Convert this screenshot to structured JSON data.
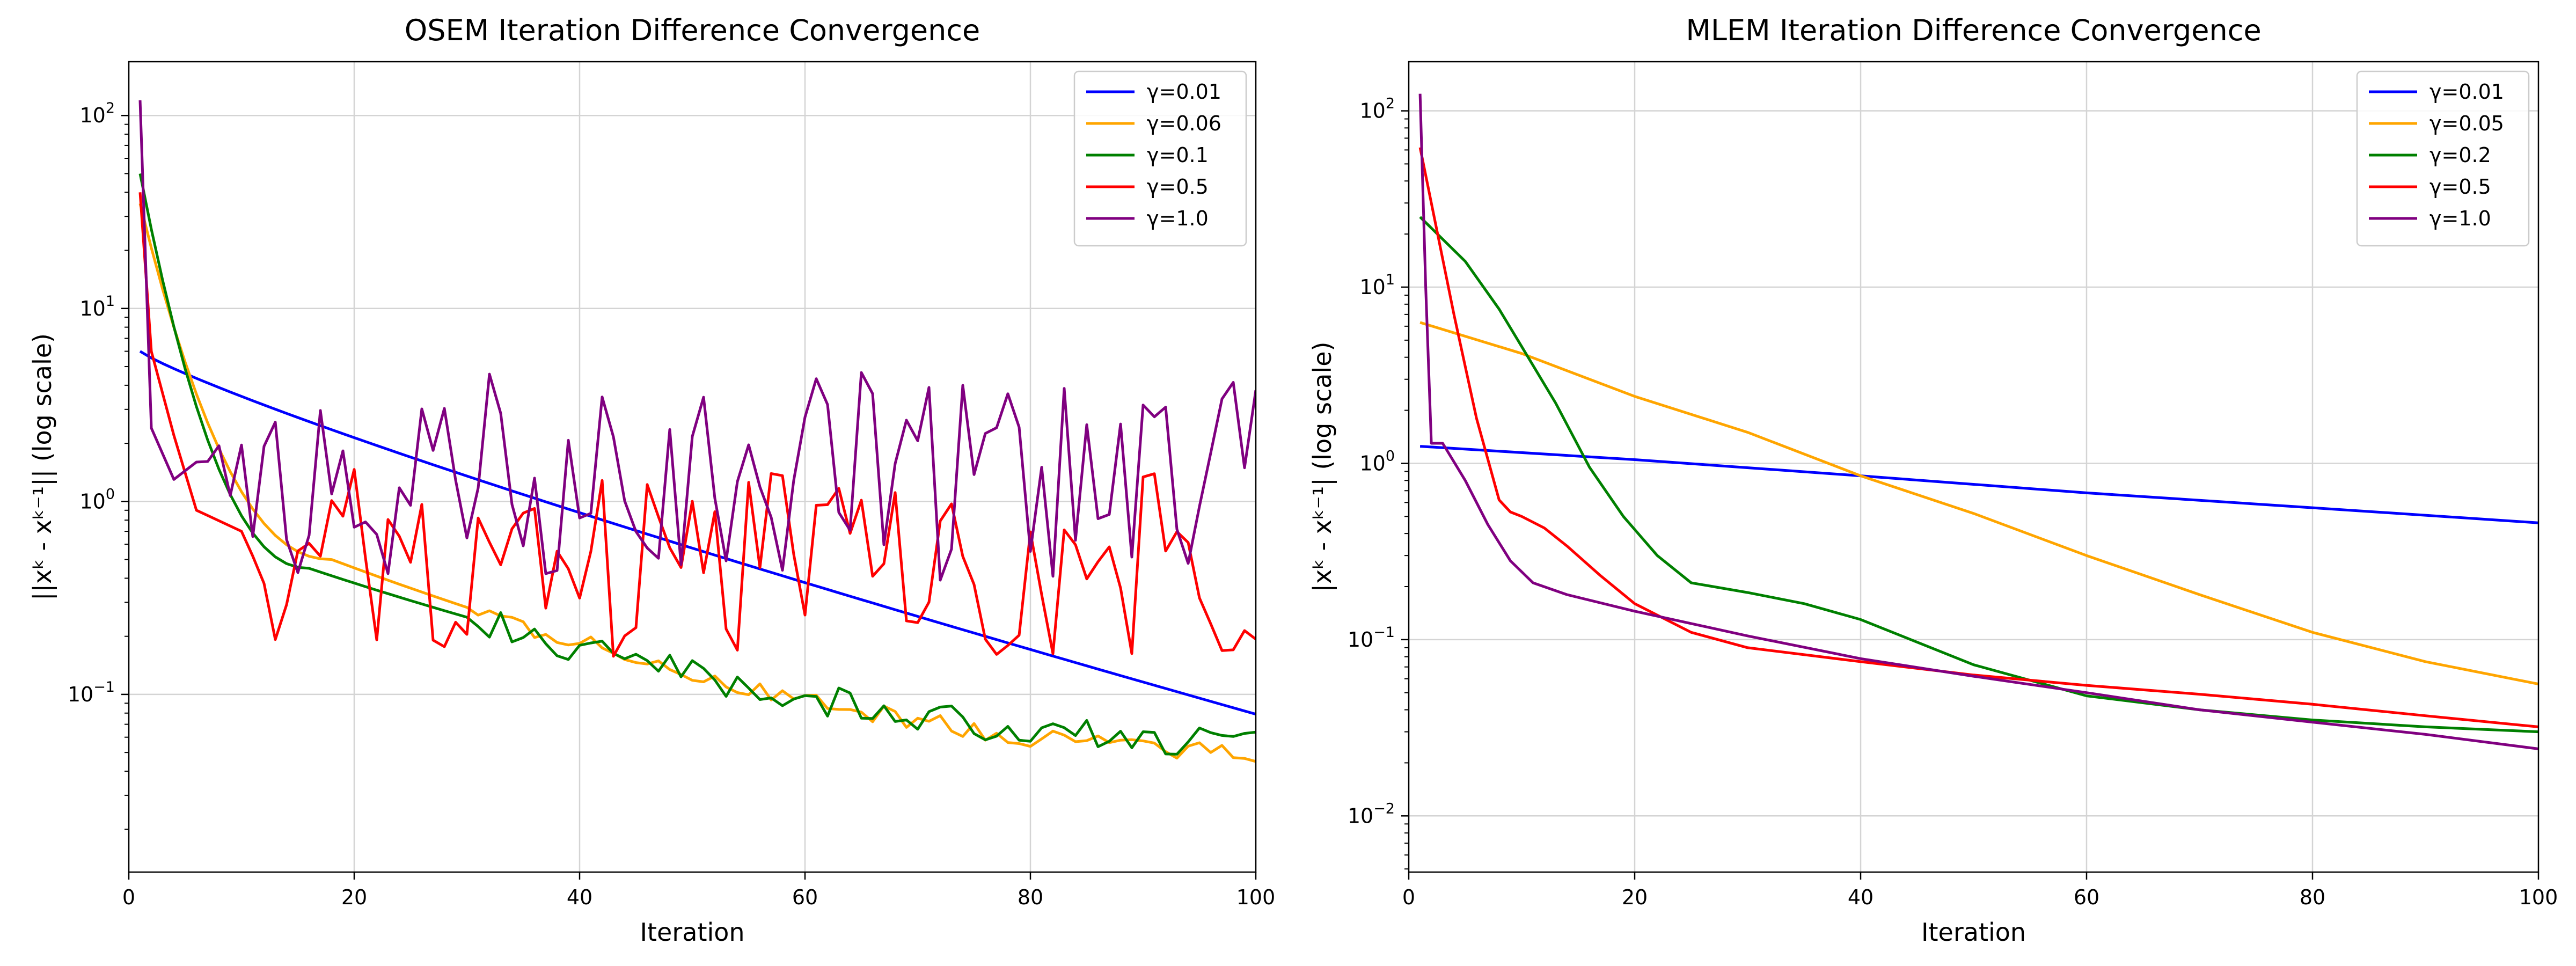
{
  "chart_data": [
    {
      "type": "line",
      "title": "OSEM Iteration Difference Convergence",
      "xlabel": "Iteration",
      "ylabel": "||xᵏ - xᵏ⁻¹|| (log scale)",
      "xlim": [
        0,
        100
      ],
      "ylim": [
        0.012,
        190
      ],
      "yscale": "log",
      "grid": true,
      "legend_position": "top-right",
      "xticks": [
        0,
        20,
        40,
        60,
        80,
        100
      ],
      "xtick_labels": [
        "0",
        "20",
        "40",
        "60",
        "80",
        "100"
      ],
      "yticks": [
        0.1,
        1,
        10,
        100
      ],
      "ytick_labels": [
        {
          "base": "10",
          "exp": "−1"
        },
        {
          "base": "10",
          "exp": "0"
        },
        {
          "base": "10",
          "exp": "1"
        },
        {
          "base": "10",
          "exp": "2"
        }
      ],
      "series": [
        {
          "name": "γ=0.01",
          "color": "#0000ff",
          "kind": "exp",
          "y_start": 6.0,
          "y_end": 0.079,
          "curvature": 1.15
        },
        {
          "name": "γ=0.06",
          "color": "#ffa500",
          "kind": "decay",
          "y_start": 35,
          "y_mid": 0.5,
          "x_mid": 18,
          "y_end": 0.05,
          "noise": 0.05
        },
        {
          "name": "γ=0.1",
          "color": "#008000",
          "kind": "decay",
          "y_start": 50,
          "y_mid": 0.45,
          "x_mid": 16,
          "y_end": 0.056,
          "noise": 0.08
        },
        {
          "name": "γ=0.5",
          "color": "#ff0000",
          "kind": "noisy",
          "anchors": [
            [
              1,
              40
            ],
            [
              2,
              6
            ],
            [
              4,
              2.2
            ],
            [
              6,
              0.9
            ],
            [
              10,
              0.7
            ]
          ],
          "level": 0.48,
          "spread": 0.55
        },
        {
          "name": "γ=1.0",
          "color": "#800080",
          "kind": "noisy",
          "anchors": [
            [
              1,
              120
            ],
            [
              2,
              2.4
            ],
            [
              4,
              1.3
            ],
            [
              6,
              1.6
            ]
          ],
          "level": 1.35,
          "spread": 0.6
        }
      ]
    },
    {
      "type": "line",
      "title": "MLEM Iteration Difference Convergence",
      "xlabel": "Iteration",
      "ylabel": "|xᵏ - xᵏ⁻¹| (log scale)",
      "xlim": [
        0,
        100
      ],
      "ylim": [
        0.0048,
        190
      ],
      "yscale": "log",
      "grid": true,
      "legend_position": "top-right",
      "xticks": [
        0,
        20,
        40,
        60,
        80,
        100
      ],
      "xtick_labels": [
        "0",
        "20",
        "40",
        "60",
        "80",
        "100"
      ],
      "yticks": [
        0.01,
        0.1,
        1,
        10,
        100
      ],
      "ytick_labels": [
        {
          "base": "10",
          "exp": "−2"
        },
        {
          "base": "10",
          "exp": "−1"
        },
        {
          "base": "10",
          "exp": "0"
        },
        {
          "base": "10",
          "exp": "1"
        },
        {
          "base": "10",
          "exp": "2"
        }
      ],
      "series": [
        {
          "name": "γ=0.01",
          "color": "#0000ff",
          "kind": "points",
          "points": [
            [
              1,
              1.25
            ],
            [
              20,
              1.05
            ],
            [
              40,
              0.85
            ],
            [
              60,
              0.68
            ],
            [
              80,
              0.56
            ],
            [
              100,
              0.46
            ]
          ]
        },
        {
          "name": "γ=0.05",
          "color": "#ffa500",
          "kind": "points",
          "points": [
            [
              1,
              6.3
            ],
            [
              10,
              4.2
            ],
            [
              20,
              2.4
            ],
            [
              30,
              1.5
            ],
            [
              40,
              0.85
            ],
            [
              50,
              0.52
            ],
            [
              60,
              0.3
            ],
            [
              70,
              0.18
            ],
            [
              80,
              0.11
            ],
            [
              90,
              0.075
            ],
            [
              100,
              0.056
            ]
          ]
        },
        {
          "name": "γ=0.2",
          "color": "#008000",
          "kind": "points",
          "points": [
            [
              1,
              25
            ],
            [
              5,
              14
            ],
            [
              8,
              7.5
            ],
            [
              10,
              4.6
            ],
            [
              13,
              2.2
            ],
            [
              16,
              0.95
            ],
            [
              19,
              0.5
            ],
            [
              22,
              0.3
            ],
            [
              25,
              0.21
            ],
            [
              30,
              0.185
            ],
            [
              35,
              0.16
            ],
            [
              40,
              0.13
            ],
            [
              50,
              0.072
            ],
            [
              60,
              0.048
            ],
            [
              70,
              0.04
            ],
            [
              80,
              0.035
            ],
            [
              90,
              0.032
            ],
            [
              100,
              0.03
            ]
          ]
        },
        {
          "name": "γ=0.5",
          "color": "#ff0000",
          "kind": "points",
          "points": [
            [
              1,
              62
            ],
            [
              2,
              30
            ],
            [
              4,
              7
            ],
            [
              6,
              1.8
            ],
            [
              8,
              0.62
            ],
            [
              9,
              0.53
            ],
            [
              10,
              0.5
            ],
            [
              12,
              0.43
            ],
            [
              14,
              0.34
            ],
            [
              17,
              0.23
            ],
            [
              20,
              0.16
            ],
            [
              25,
              0.11
            ],
            [
              30,
              0.09
            ],
            [
              40,
              0.075
            ],
            [
              50,
              0.063
            ],
            [
              60,
              0.055
            ],
            [
              70,
              0.049
            ],
            [
              80,
              0.043
            ],
            [
              90,
              0.037
            ],
            [
              100,
              0.032
            ]
          ]
        },
        {
          "name": "γ=1.0",
          "color": "#800080",
          "kind": "points",
          "points": [
            [
              1,
              125
            ],
            [
              1.5,
              10
            ],
            [
              2,
              1.3
            ],
            [
              3,
              1.3
            ],
            [
              5,
              0.8
            ],
            [
              7,
              0.45
            ],
            [
              9,
              0.28
            ],
            [
              11,
              0.21
            ],
            [
              14,
              0.18
            ],
            [
              20,
              0.145
            ],
            [
              30,
              0.105
            ],
            [
              40,
              0.078
            ],
            [
              50,
              0.062
            ],
            [
              60,
              0.05
            ],
            [
              70,
              0.04
            ],
            [
              80,
              0.034
            ],
            [
              90,
              0.029
            ],
            [
              100,
              0.024
            ]
          ]
        }
      ]
    }
  ]
}
